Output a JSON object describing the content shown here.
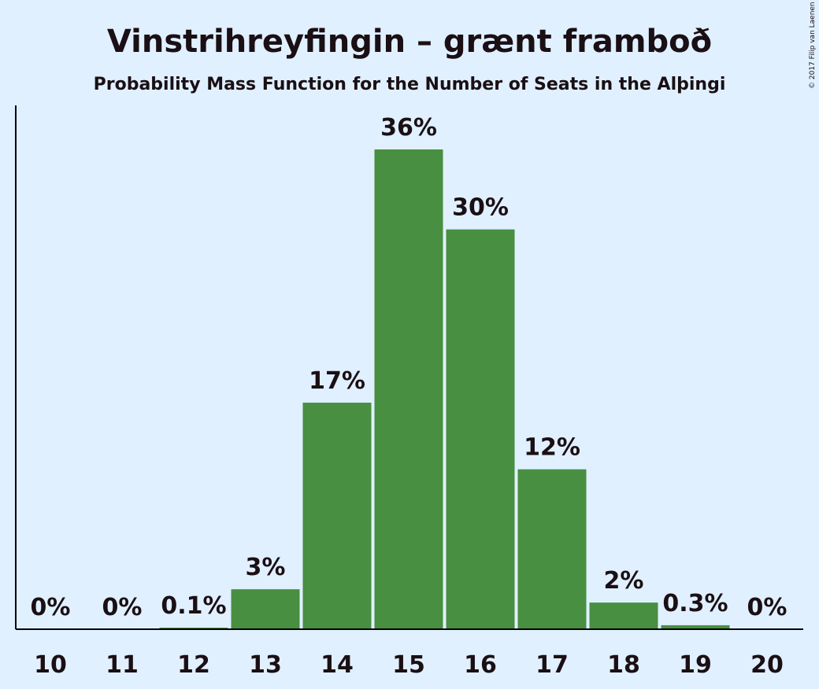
{
  "chart_data": {
    "type": "bar",
    "title": "Vinstrihreyfingin – grænt framboð",
    "subtitle": "Probability Mass Function for the Number of Seats in the Alþingi",
    "categories": [
      "10",
      "11",
      "12",
      "13",
      "14",
      "15",
      "16",
      "17",
      "18",
      "19",
      "20"
    ],
    "values": [
      0,
      0,
      0.1,
      3,
      17,
      36,
      30,
      12,
      2,
      0.3,
      0
    ],
    "data_labels": [
      "0%",
      "0%",
      "0.1%",
      "3%",
      "17%",
      "36%",
      "30%",
      "12%",
      "2%",
      "0.3%",
      "0%"
    ],
    "ylim": [
      0,
      39
    ],
    "bar_color": "#488f41",
    "background_color": "#e0f0ff",
    "grid": false
  },
  "copyright": "© 2017 Filip van Laenen"
}
